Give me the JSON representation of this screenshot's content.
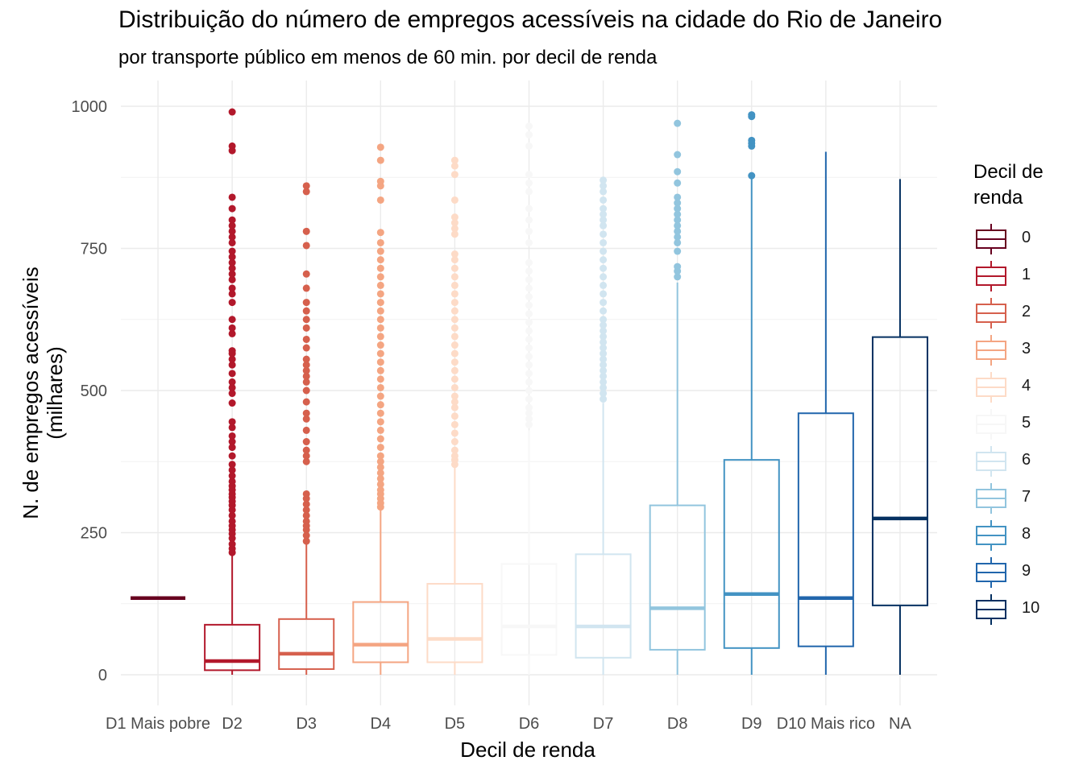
{
  "title": "Distribuição do número de empregos acessíveis na cidade do Rio de Janeiro",
  "subtitle": "por transporte público em menos de 60 min. por decil de renda",
  "legend": {
    "title": "Decil de renda",
    "items": [
      {
        "label": "0",
        "color": "#67001f"
      },
      {
        "label": "1",
        "color": "#b2182b"
      },
      {
        "label": "2",
        "color": "#d6604d"
      },
      {
        "label": "3",
        "color": "#f4a582"
      },
      {
        "label": "4",
        "color": "#fddbc7"
      },
      {
        "label": "5",
        "color": "#f7f7f7"
      },
      {
        "label": "6",
        "color": "#d1e5f0"
      },
      {
        "label": "7",
        "color": "#92c5de"
      },
      {
        "label": "8",
        "color": "#4393c3"
      },
      {
        "label": "9",
        "color": "#2166ac"
      },
      {
        "label": "10",
        "color": "#053061"
      }
    ]
  },
  "chart_data": {
    "type": "box",
    "title": "Distribuição do número de empregos acessíveis na cidade do Rio de Janeiro",
    "subtitle": "por transporte público em menos de 60 min. por decil de renda",
    "xlabel": "Decil de renda",
    "ylabel": "N. de empregos acessíveis\n(milhares)",
    "ylim": [
      -45,
      1000
    ],
    "yticks": [
      0,
      250,
      500,
      750,
      1000
    ],
    "grid": true,
    "legend_position": "right",
    "categories": [
      "D1 Mais pobre",
      "D2",
      "D3",
      "D4",
      "D5",
      "D6",
      "D7",
      "D8",
      "D9",
      "D10 Mais rico",
      "NA"
    ],
    "boxes": [
      {
        "category": "D1 Mais pobre",
        "color_index": 0,
        "min": 135,
        "q1": 135,
        "median": 135,
        "q3": 135,
        "max": 135,
        "outliers": []
      },
      {
        "category": "D2",
        "color_index": 1,
        "min": 0,
        "q1": 8,
        "median": 24,
        "q3": 88,
        "max": 210,
        "outliers": [
          215,
          222,
          230,
          240,
          248,
          255,
          262,
          270,
          280,
          290,
          298,
          305,
          312,
          318,
          325,
          332,
          340,
          350,
          360,
          370,
          385,
          400,
          410,
          420,
          435,
          445,
          478,
          495,
          505,
          515,
          530,
          545,
          555,
          565,
          570,
          600,
          610,
          625,
          655,
          670,
          680,
          695,
          705,
          715,
          725,
          735,
          745,
          760,
          770,
          780,
          790,
          800,
          820,
          840,
          922,
          930,
          990
        ]
      },
      {
        "category": "D3",
        "color_index": 2,
        "min": 0,
        "q1": 10,
        "median": 37,
        "q3": 98,
        "max": 230,
        "outliers": [
          235,
          245,
          255,
          262,
          270,
          280,
          290,
          300,
          310,
          318,
          375,
          385,
          395,
          410,
          430,
          450,
          460,
          480,
          500,
          515,
          525,
          535,
          545,
          555,
          575,
          590,
          610,
          625,
          640,
          655,
          680,
          705,
          755,
          780,
          850,
          860
        ]
      },
      {
        "category": "D4",
        "color_index": 3,
        "min": 0,
        "q1": 22,
        "median": 53,
        "q3": 128,
        "max": 290,
        "outliers": [
          295,
          302,
          310,
          318,
          325,
          335,
          345,
          355,
          365,
          375,
          385,
          400,
          415,
          430,
          445,
          460,
          475,
          490,
          505,
          520,
          535,
          550,
          565,
          580,
          595,
          610,
          625,
          640,
          655,
          670,
          685,
          700,
          715,
          730,
          745,
          760,
          778,
          835,
          860,
          868,
          905,
          928
        ]
      },
      {
        "category": "D5",
        "color_index": 4,
        "min": 0,
        "q1": 22,
        "median": 63,
        "q3": 160,
        "max": 365,
        "outliers": [
          370,
          378,
          385,
          395,
          410,
          425,
          440,
          455,
          470,
          480,
          490,
          505,
          520,
          535,
          550,
          565,
          580,
          595,
          610,
          625,
          640,
          655,
          670,
          685,
          700,
          715,
          730,
          740,
          775,
          785,
          795,
          805,
          835,
          880,
          895,
          905
        ]
      },
      {
        "category": "D6",
        "color_index": 5,
        "min": 0,
        "q1": 35,
        "median": 85,
        "q3": 195,
        "max": 430,
        "outliers": [
          440,
          450,
          460,
          470,
          485,
          500,
          515,
          530,
          545,
          560,
          575,
          590,
          605,
          620,
          635,
          650,
          665,
          680,
          695,
          710,
          725,
          760,
          780,
          800,
          820,
          850,
          865,
          880,
          930,
          950,
          965
        ]
      },
      {
        "category": "D7",
        "color_index": 6,
        "min": 0,
        "q1": 30,
        "median": 85,
        "q3": 212,
        "max": 478,
        "outliers": [
          485,
          495,
          505,
          515,
          525,
          535,
          545,
          555,
          565,
          575,
          585,
          595,
          605,
          615,
          625,
          640,
          655,
          670,
          685,
          700,
          715,
          730,
          745,
          760,
          775,
          790,
          800,
          810,
          820,
          835,
          850,
          860,
          870
        ]
      },
      {
        "category": "D8",
        "color_index": 7,
        "min": 0,
        "q1": 44,
        "median": 117,
        "q3": 298,
        "max": 690,
        "outliers": [
          700,
          710,
          718,
          745,
          760,
          770,
          780,
          790,
          800,
          810,
          820,
          830,
          840,
          865,
          885,
          915,
          970
        ]
      },
      {
        "category": "D9",
        "color_index": 8,
        "min": 0,
        "q1": 47,
        "median": 142,
        "q3": 378,
        "max": 875,
        "outliers": [
          878,
          930,
          935,
          940,
          982,
          985
        ]
      },
      {
        "category": "D10 Mais rico",
        "color_index": 9,
        "min": 0,
        "q1": 50,
        "median": 135,
        "q3": 460,
        "max": 920,
        "outliers": []
      },
      {
        "category": "NA",
        "color_index": 10,
        "min": 0,
        "q1": 122,
        "median": 275,
        "q3": 594,
        "max": 872,
        "outliers": []
      }
    ]
  }
}
